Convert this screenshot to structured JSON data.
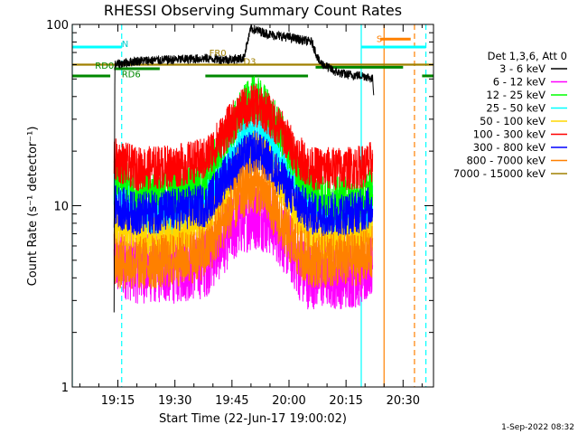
{
  "chart_data": {
    "type": "line",
    "title": "RHESSI Observing Summary Count Rates",
    "xlabel": "Start Time (22-Jun-17 19:00:02)",
    "ylabel": "Count Rate (s⁻¹ detector⁻¹)",
    "scale": "log",
    "xlim": [
      "19:03",
      "20:38"
    ],
    "ylim": [
      1,
      100
    ],
    "x_ticks": [
      "19:15",
      "19:30",
      "19:45",
      "20:00",
      "20:15",
      "20:30"
    ],
    "y_ticks": [
      "1",
      "10",
      "100"
    ],
    "legend_title": "Det 1,3,6, Att 0",
    "legend_position": "right",
    "timestamp": "1-Sep-2022 08:32",
    "series": [
      {
        "name": "3 - 6 keV",
        "color": "#000000",
        "points": [
          [
            "19:14",
            2.5
          ],
          [
            "19:14.2",
            60
          ],
          [
            "19:20",
            63
          ],
          [
            "19:30",
            64
          ],
          [
            "19:38",
            65
          ],
          [
            "19:44",
            64
          ],
          [
            "19:48",
            65
          ],
          [
            "19:50",
            95
          ],
          [
            "19:55",
            88
          ],
          [
            "20:00",
            85
          ],
          [
            "20:06",
            80
          ],
          [
            "20:08",
            62
          ],
          [
            "20:12",
            55
          ],
          [
            "20:15",
            53
          ],
          [
            "20:20",
            52
          ],
          [
            "20:22",
            50
          ],
          [
            "20:22.3",
            42
          ]
        ]
      },
      {
        "name": "6 - 12 keV",
        "color": "#ff00ff",
        "points": [
          [
            "19:14",
            5
          ],
          [
            "19:20",
            4.5
          ],
          [
            "19:30",
            4.5
          ],
          [
            "19:38",
            4.8
          ],
          [
            "19:44",
            7
          ],
          [
            "19:48",
            8.5
          ],
          [
            "19:52",
            9
          ],
          [
            "19:56",
            8
          ],
          [
            "20:00",
            6
          ],
          [
            "20:04",
            4.2
          ],
          [
            "20:10",
            4.2
          ],
          [
            "20:15",
            4.2
          ],
          [
            "20:20",
            4.3
          ],
          [
            "20:22",
            5
          ]
        ]
      },
      {
        "name": "12 - 25 keV",
        "color": "#00ff00",
        "points": [
          [
            "19:14",
            15
          ],
          [
            "19:20",
            12
          ],
          [
            "19:30",
            12
          ],
          [
            "19:38",
            14
          ],
          [
            "19:44",
            25
          ],
          [
            "19:48",
            35
          ],
          [
            "19:51",
            40
          ],
          [
            "19:54",
            35
          ],
          [
            "19:58",
            25
          ],
          [
            "20:02",
            16
          ],
          [
            "20:06",
            12
          ],
          [
            "20:10",
            11
          ],
          [
            "20:15",
            11
          ],
          [
            "20:20",
            11.5
          ],
          [
            "20:22",
            13
          ]
        ]
      },
      {
        "name": "25 - 50 keV",
        "color": "#00ffff",
        "points": [
          [
            "19:14",
            12
          ],
          [
            "19:20",
            9
          ],
          [
            "19:30",
            9
          ],
          [
            "19:38",
            11
          ],
          [
            "19:44",
            18
          ],
          [
            "19:48",
            24
          ],
          [
            "19:51",
            27
          ],
          [
            "19:54",
            24
          ],
          [
            "19:58",
            18
          ],
          [
            "20:02",
            12
          ],
          [
            "20:06",
            9
          ],
          [
            "20:10",
            8.5
          ],
          [
            "20:15",
            8.5
          ],
          [
            "20:20",
            9
          ],
          [
            "20:22",
            10
          ]
        ]
      },
      {
        "name": "50 - 100 keV",
        "color": "#ffd700",
        "points": [
          [
            "19:14",
            8
          ],
          [
            "19:20",
            7
          ],
          [
            "19:30",
            7
          ],
          [
            "19:38",
            8
          ],
          [
            "19:44",
            13
          ],
          [
            "19:48",
            18
          ],
          [
            "19:51",
            20
          ],
          [
            "19:54",
            18
          ],
          [
            "19:58",
            13
          ],
          [
            "20:02",
            9
          ],
          [
            "20:06",
            7
          ],
          [
            "20:10",
            6.5
          ],
          [
            "20:15",
            6.5
          ],
          [
            "20:20",
            7
          ],
          [
            "20:22",
            7.5
          ]
        ]
      },
      {
        "name": "100 - 300 keV",
        "color": "#ff0000",
        "points": [
          [
            "19:14",
            18
          ],
          [
            "19:20",
            16
          ],
          [
            "19:30",
            16.5
          ],
          [
            "19:38",
            18
          ],
          [
            "19:44",
            27
          ],
          [
            "19:48",
            34
          ],
          [
            "19:51",
            36
          ],
          [
            "19:54",
            33
          ],
          [
            "19:58",
            26
          ],
          [
            "20:02",
            19
          ],
          [
            "20:06",
            16
          ],
          [
            "20:10",
            16
          ],
          [
            "20:15",
            16
          ],
          [
            "20:20",
            16.5
          ],
          [
            "20:22",
            17.5
          ]
        ]
      },
      {
        "name": "300 - 800 keV",
        "color": "#0000ff",
        "points": [
          [
            "19:14",
            10
          ],
          [
            "19:20",
            9
          ],
          [
            "19:30",
            9.5
          ],
          [
            "19:38",
            10
          ],
          [
            "19:44",
            15
          ],
          [
            "19:48",
            18.5
          ],
          [
            "19:51",
            20
          ],
          [
            "19:54",
            18
          ],
          [
            "19:58",
            14
          ],
          [
            "20:02",
            10.5
          ],
          [
            "20:06",
            9
          ],
          [
            "20:10",
            9
          ],
          [
            "20:15",
            9
          ],
          [
            "20:20",
            9.5
          ],
          [
            "20:22",
            10
          ]
        ]
      },
      {
        "name": "800 - 7000 keV",
        "color": "#ff8000",
        "points": [
          [
            "19:14",
            5
          ],
          [
            "19:20",
            4.8
          ],
          [
            "19:30",
            5
          ],
          [
            "19:38",
            5.5
          ],
          [
            "19:44",
            9
          ],
          [
            "19:48",
            12
          ],
          [
            "19:51",
            13
          ],
          [
            "19:54",
            11.5
          ],
          [
            "19:58",
            8
          ],
          [
            "20:02",
            5.8
          ],
          [
            "20:06",
            5
          ],
          [
            "20:10",
            5
          ],
          [
            "20:15",
            5
          ],
          [
            "20:20",
            5.2
          ],
          [
            "20:22",
            5.5
          ]
        ]
      },
      {
        "name": "7000 - 15000 keV",
        "color": "#a08000",
        "points": [
          [
            "19:03",
            60
          ],
          [
            "20:38",
            60
          ]
        ]
      }
    ],
    "annotations": [
      {
        "text": "N",
        "color": "#00cccc",
        "x": "19:16",
        "y": 75
      },
      {
        "text": "S",
        "color": "#ff8000",
        "x": "20:23",
        "y": 80
      },
      {
        "text": "FR0",
        "color": "#a08000",
        "x": "19:39",
        "y": 67
      },
      {
        "text": "RD0",
        "color": "#008800",
        "x": "19:09",
        "y": 57
      },
      {
        "text": "RD6",
        "color": "#008800",
        "x": "19:16",
        "y": 51
      },
      {
        "text": "D3",
        "color": "#a08000",
        "x": "19:48",
        "y": 60
      }
    ],
    "segments": [
      {
        "color": "#00ffff",
        "y": 75,
        "x": [
          "19:03",
          "19:16"
        ]
      },
      {
        "color": "#00ffff",
        "y": 75,
        "x": [
          "20:19",
          "20:36"
        ]
      },
      {
        "color": "#ff8000",
        "y": 83,
        "x": [
          "20:24",
          "20:32"
        ]
      },
      {
        "color": "#008800",
        "y": 52,
        "x": [
          "19:03",
          "19:13"
        ]
      },
      {
        "color": "#008800",
        "y": 52,
        "x": [
          "19:38",
          "20:05"
        ]
      },
      {
        "color": "#008800",
        "y": 52,
        "x": [
          "20:35",
          "20:38"
        ]
      },
      {
        "color": "#008800",
        "y": 58,
        "x": [
          "20:07",
          "20:30"
        ]
      },
      {
        "color": "#008800",
        "y": 57,
        "x": [
          "19:14",
          "19:26"
        ]
      }
    ],
    "vlines": [
      {
        "x": "19:03",
        "color": "#00ffff",
        "style": "solid"
      },
      {
        "x": "19:16",
        "color": "#00ffff",
        "style": "dashed"
      },
      {
        "x": "20:19",
        "color": "#00ffff",
        "style": "solid"
      },
      {
        "x": "20:36",
        "color": "#00ffff",
        "style": "dashed"
      },
      {
        "x": "20:25",
        "color": "#ff8000",
        "style": "solid"
      },
      {
        "x": "20:33",
        "color": "#ff8000",
        "style": "dashed"
      }
    ]
  }
}
